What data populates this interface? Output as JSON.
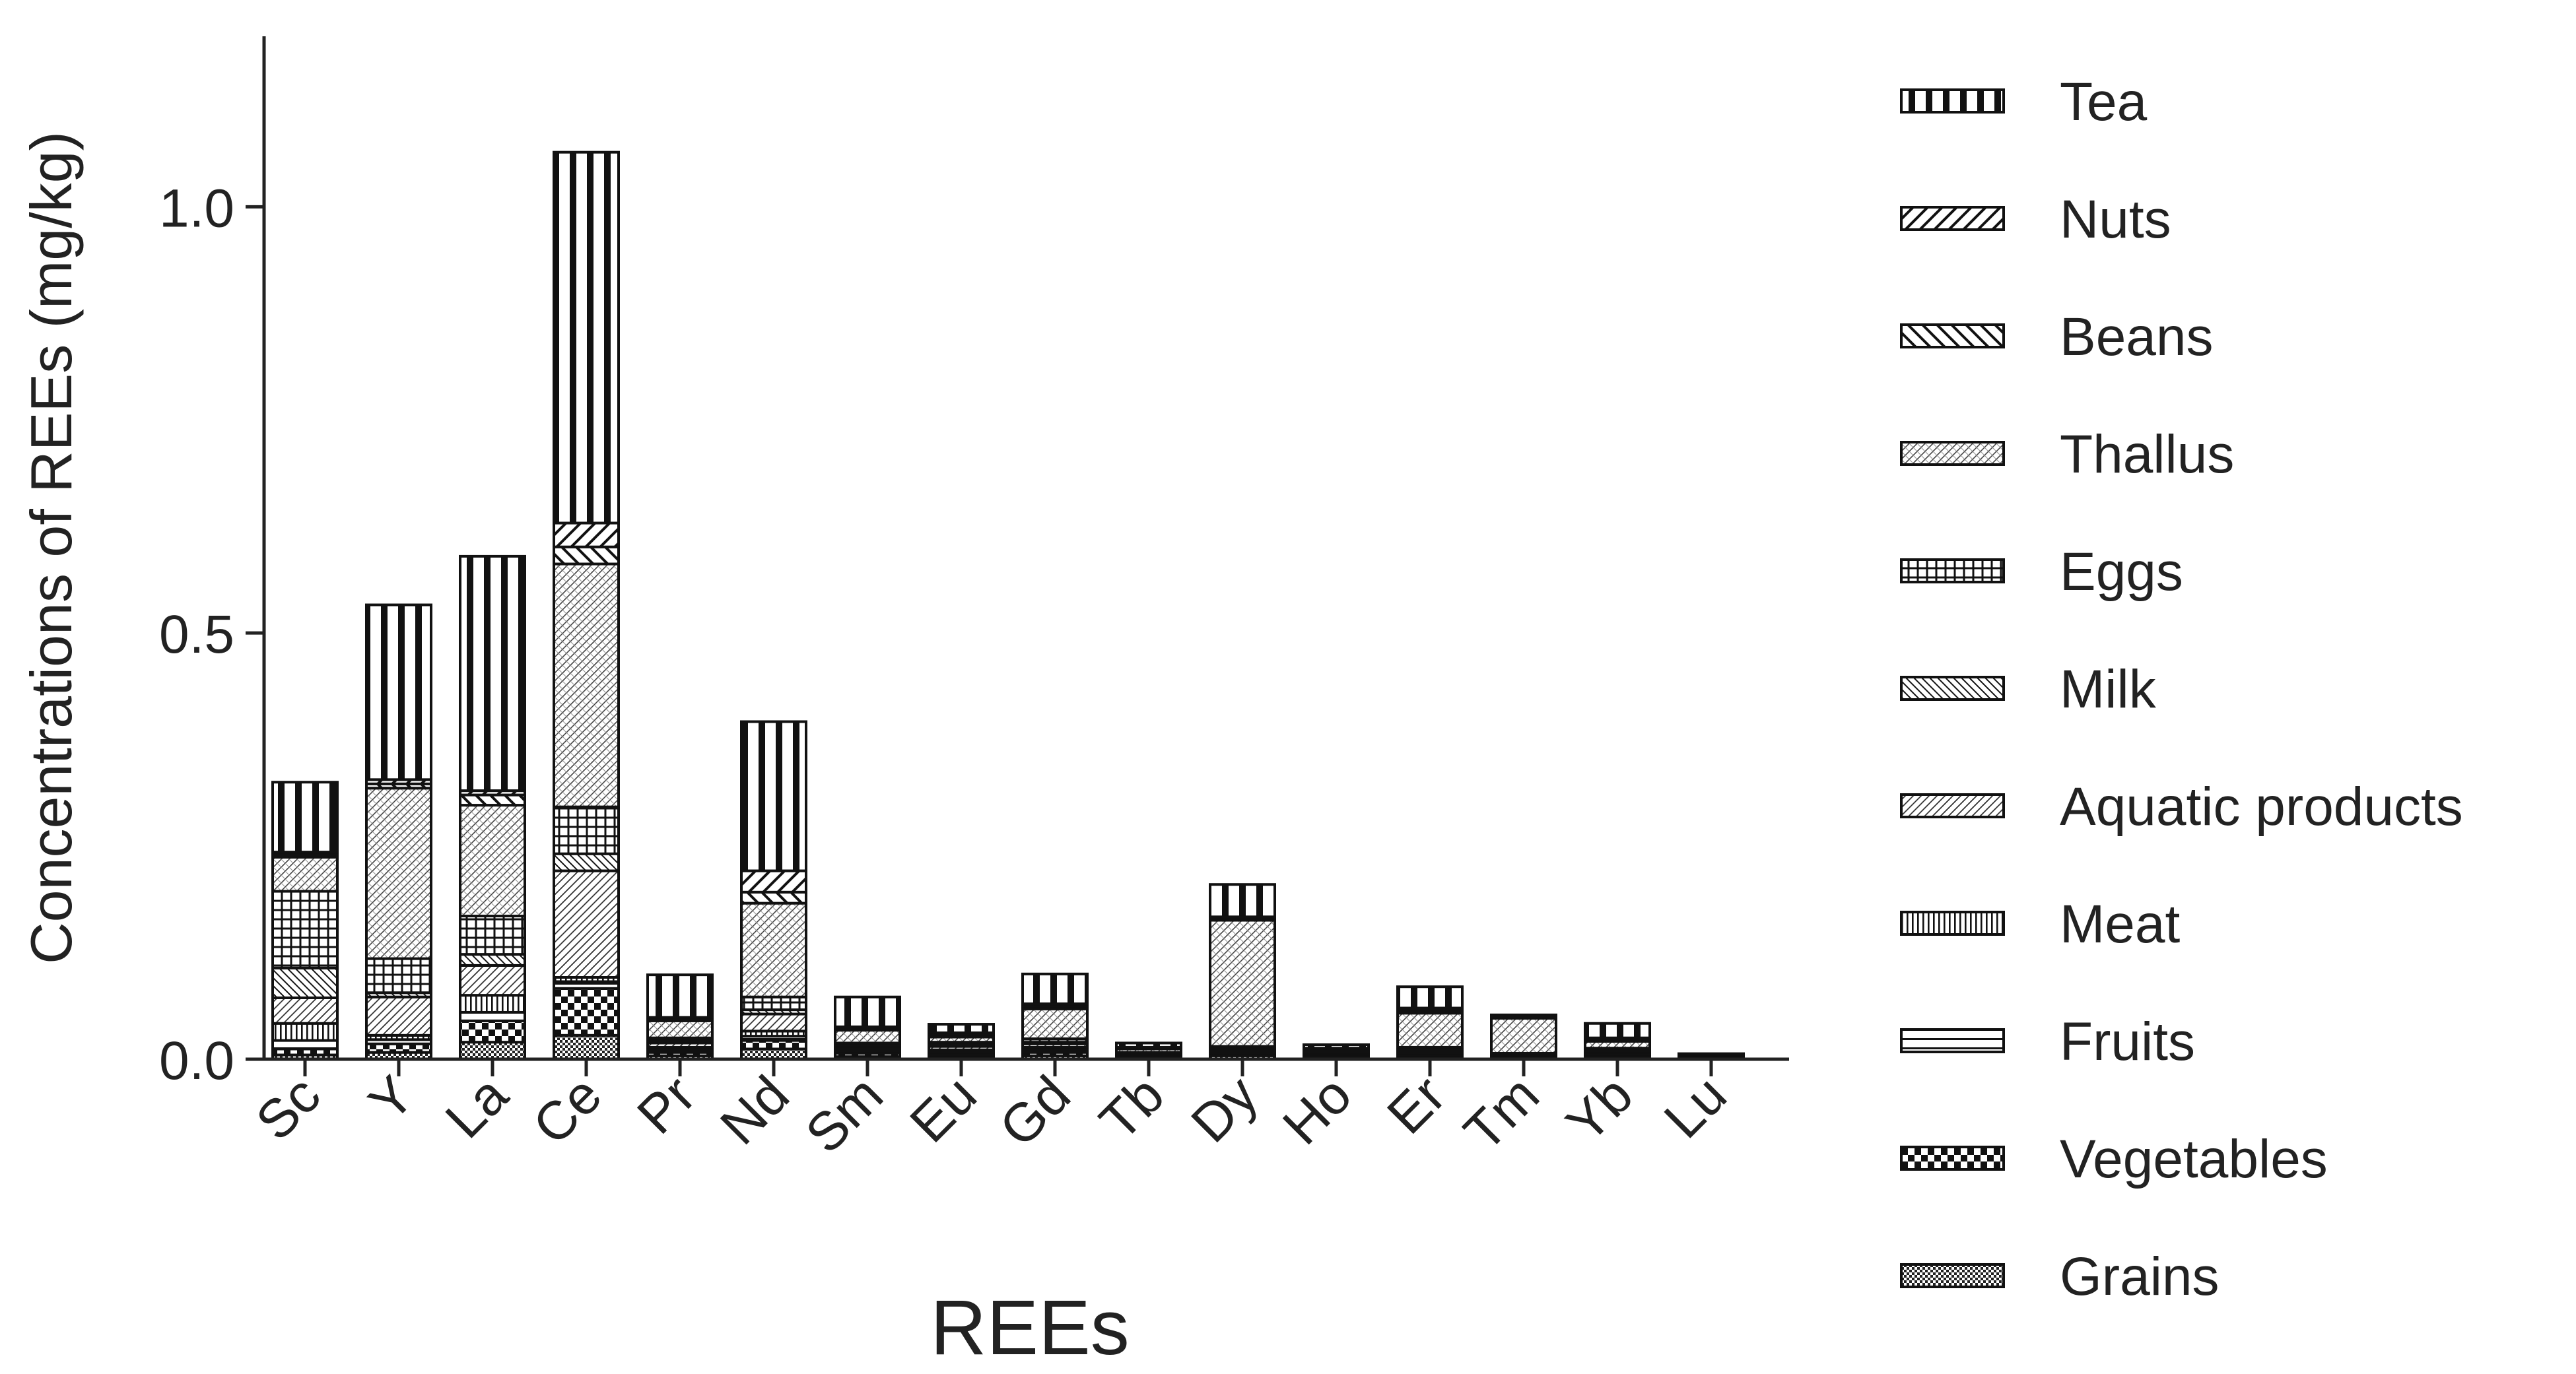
{
  "chart_data": {
    "type": "bar",
    "stacked": true,
    "xlabel": "REEs",
    "ylabel": "Concentrations of REEs (mg/kg)",
    "ylim": [
      0,
      1.2
    ],
    "yticks": [
      0.0,
      0.5,
      1.0
    ],
    "ytick_labels": [
      "0.0",
      "0.5",
      "1.0"
    ],
    "grid": false,
    "legend_placement": "right",
    "categories": [
      "Sc",
      "Y",
      "La",
      "Ce",
      "Pr",
      "Nd",
      "Sm",
      "Eu",
      "Gd",
      "Tb",
      "Dy",
      "Ho",
      "Er",
      "Tm",
      "Yb",
      "Lu"
    ],
    "series": [
      {
        "name": "Grains",
        "pattern": "grains",
        "values": [
          0.005,
          0.008,
          0.02,
          0.028,
          0.004,
          0.012,
          0.003,
          0.002,
          0.004,
          0.001,
          0.004,
          0.001,
          0.003,
          0.001,
          0.002,
          0.0005
        ]
      },
      {
        "name": "Vegetables",
        "pattern": "vegetables",
        "values": [
          0.007,
          0.01,
          0.025,
          0.055,
          0.004,
          0.01,
          0.004,
          0.003,
          0.004,
          0.001,
          0.003,
          0.001,
          0.002,
          0.001,
          0.002,
          0.0005
        ]
      },
      {
        "name": "Fruits",
        "pattern": "fruits",
        "values": [
          0.01,
          0.005,
          0.01,
          0.008,
          0.003,
          0.005,
          0.003,
          0.003,
          0.003,
          0.001,
          0.002,
          0.001,
          0.002,
          0.001,
          0.002,
          0.0005
        ]
      },
      {
        "name": "Meat",
        "pattern": "meat",
        "values": [
          0.02,
          0.005,
          0.02,
          0.005,
          0.003,
          0.006,
          0.002,
          0.003,
          0.003,
          0.001,
          0.002,
          0.001,
          0.002,
          0.001,
          0.002,
          0.0005
        ]
      },
      {
        "name": "Aquatic products",
        "pattern": "aquatic",
        "values": [
          0.03,
          0.045,
          0.035,
          0.125,
          0.005,
          0.02,
          0.003,
          0.004,
          0.004,
          0.002,
          0.002,
          0.002,
          0.002,
          0.001,
          0.002,
          0.0005
        ]
      },
      {
        "name": "Milk",
        "pattern": "milk",
        "values": [
          0.035,
          0.005,
          0.013,
          0.02,
          0.002,
          0.005,
          0.002,
          0.002,
          0.002,
          0.001,
          0.001,
          0.001,
          0.001,
          0.001,
          0.001,
          0.0005
        ]
      },
      {
        "name": "Eggs",
        "pattern": "eggs",
        "values": [
          0.09,
          0.04,
          0.045,
          0.055,
          0.004,
          0.015,
          0.002,
          0.003,
          0.004,
          0.001,
          0.001,
          0.001,
          0.002,
          0.001,
          0.002,
          0.0005
        ]
      },
      {
        "name": "Thallus",
        "pattern": "thallus",
        "values": [
          0.04,
          0.2,
          0.13,
          0.285,
          0.02,
          0.11,
          0.015,
          0.006,
          0.035,
          0.004,
          0.148,
          0.003,
          0.04,
          0.041,
          0.008,
          0.001
        ]
      },
      {
        "name": "Beans",
        "pattern": "beans",
        "values": [
          0.003,
          0.005,
          0.012,
          0.02,
          0.002,
          0.013,
          0.002,
          0.003,
          0.003,
          0.001,
          0.002,
          0.001,
          0.003,
          0.001,
          0.002,
          0.0005
        ]
      },
      {
        "name": "Nuts",
        "pattern": "nuts",
        "values": [
          0.003,
          0.005,
          0.005,
          0.028,
          0.002,
          0.025,
          0.002,
          0.002,
          0.003,
          0.001,
          0.002,
          0.001,
          0.003,
          0.001,
          0.002,
          0.0005
        ]
      },
      {
        "name": "Tea",
        "pattern": "tea",
        "values": [
          0.082,
          0.205,
          0.275,
          0.435,
          0.05,
          0.175,
          0.035,
          0.01,
          0.035,
          0.005,
          0.038,
          0.004,
          0.025,
          0.002,
          0.017,
          0.001
        ]
      }
    ],
    "legend_order": [
      "Tea",
      "Nuts",
      "Beans",
      "Thallus",
      "Eggs",
      "Milk",
      "Aquatic products",
      "Meat",
      "Fruits",
      "Vegetables",
      "Grains"
    ]
  }
}
